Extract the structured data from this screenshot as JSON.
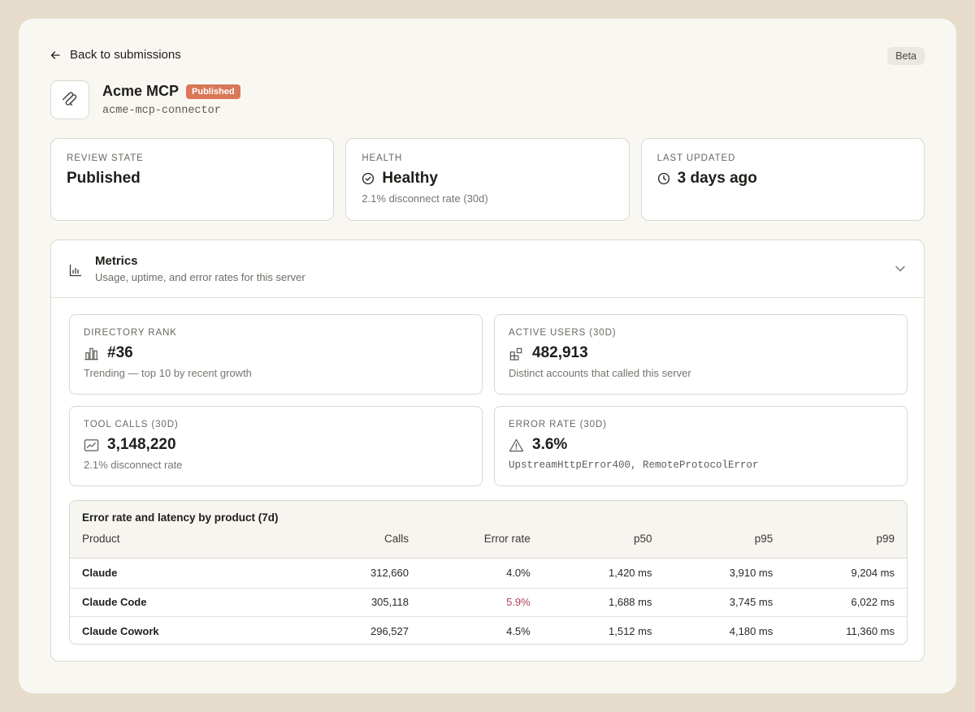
{
  "header": {
    "back_label": "Back to submissions",
    "beta_label": "Beta",
    "app_name": "Acme MCP",
    "status_badge": "Published",
    "slug": "acme-mcp-connector"
  },
  "summary": {
    "review_state": {
      "caption": "REVIEW STATE",
      "value": "Published"
    },
    "health": {
      "caption": "HEALTH",
      "value": "Healthy",
      "sub": "2.1% disconnect rate (30d)"
    },
    "last_updated": {
      "caption": "LAST UPDATED",
      "value": "3 days ago"
    }
  },
  "metrics": {
    "title": "Metrics",
    "subtitle": "Usage, uptime, and error rates for this server",
    "directory_rank": {
      "caption": "DIRECTORY RANK",
      "value": "#36",
      "sub": "Trending — top 10 by recent growth"
    },
    "active_users": {
      "caption": "ACTIVE USERS (30D)",
      "value": "482,913",
      "sub": "Distinct accounts that called this server"
    },
    "tool_calls": {
      "caption": "TOOL CALLS (30D)",
      "value": "3,148,220",
      "sub": "2.1% disconnect rate"
    },
    "error_rate": {
      "caption": "ERROR RATE (30D)",
      "value": "3.6%",
      "sub": "UpstreamHttpError400, RemoteProtocolError"
    }
  },
  "table": {
    "title": "Error rate and latency by product (7d)",
    "columns": [
      "Product",
      "Calls",
      "Error rate",
      "p50",
      "p95",
      "p99"
    ],
    "rows": [
      [
        "Claude",
        "312,660",
        "4.0%",
        "1,420 ms",
        "3,910 ms",
        "9,204 ms"
      ],
      [
        "Claude Code",
        "305,118",
        "5.9%",
        "1,688 ms",
        "3,745 ms",
        "6,022 ms"
      ],
      [
        "Claude Cowork",
        "296,527",
        "4.5%",
        "1,512 ms",
        "4,180 ms",
        "11,360 ms"
      ]
    ]
  },
  "colors": {
    "badge": "#d97757",
    "error_highlight": "#b0405a",
    "background": "#e6dccb",
    "panel": "#f9f7f2"
  }
}
